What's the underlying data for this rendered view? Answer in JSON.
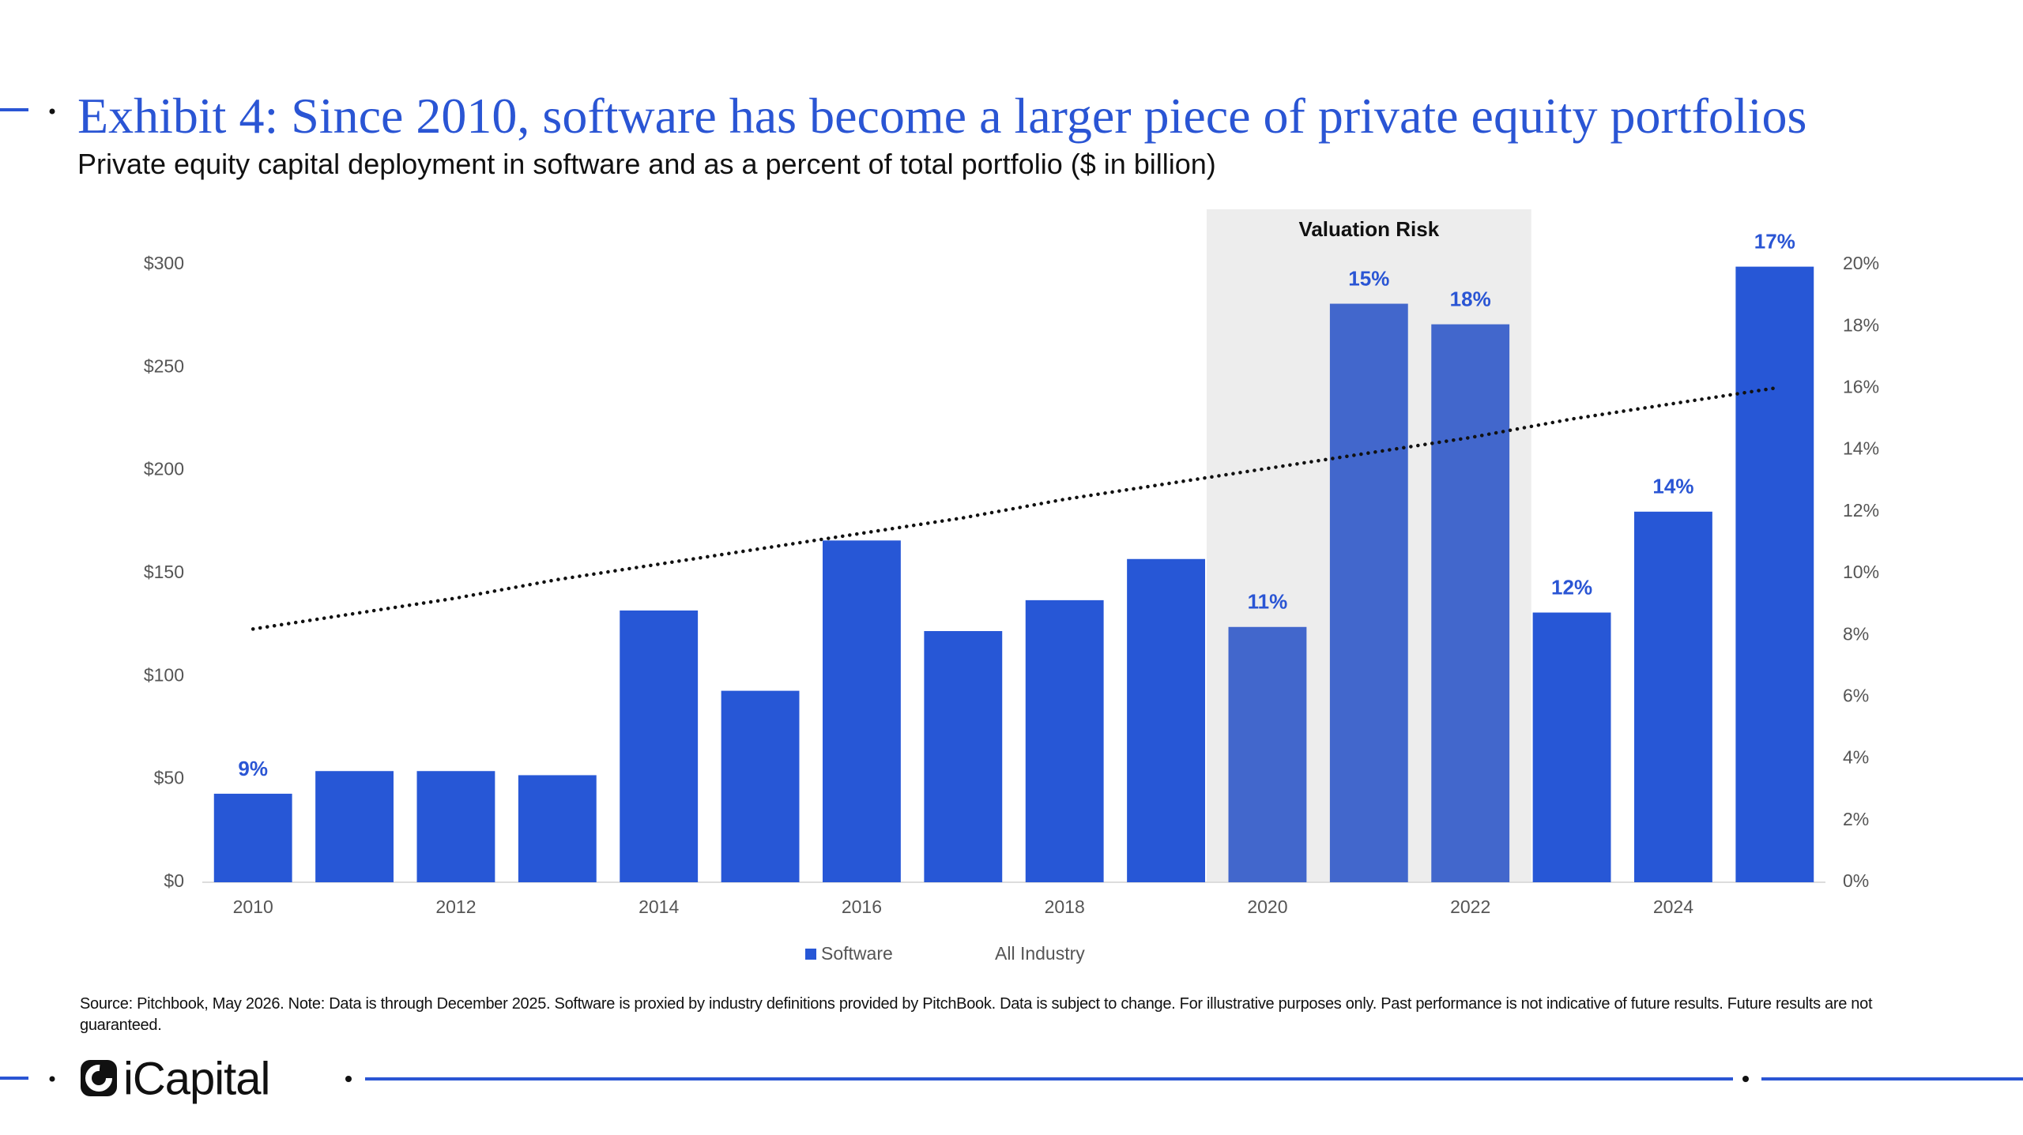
{
  "chart_data": {
    "type": "bar",
    "title": "Exhibit 4: Since 2010, software has become a larger piece of private equity portfolios",
    "subtitle": "Private equity capital deployment in software and as a percent of total portfolio ($ in billion)",
    "categories": [
      "2010",
      null,
      "2012",
      null,
      "2014",
      null,
      "2016",
      null,
      "2018",
      null,
      "2020",
      null,
      "2022",
      null,
      "2024",
      null
    ],
    "series": [
      {
        "name": "Software",
        "color": "#2757d6",
        "highlight_color": "#4267cc",
        "values": [
          43,
          54,
          54,
          52,
          132,
          93,
          166,
          122,
          137,
          157,
          124,
          281,
          271,
          131,
          180,
          299
        ]
      },
      {
        "name": "All Industry",
        "color": "#111111",
        "axis": "y2",
        "line": "dotted",
        "values": [
          8.2,
          8.7,
          9.2,
          9.8,
          10.3,
          10.8,
          11.3,
          11.8,
          12.4,
          12.9,
          13.4,
          13.9,
          14.4,
          15.0,
          15.5,
          16.0
        ]
      }
    ],
    "data_labels": {
      "color": "#2a55d4",
      "values": [
        9,
        null,
        null,
        null,
        null,
        null,
        null,
        null,
        null,
        null,
        11,
        15,
        18,
        12,
        14,
        17
      ],
      "value_labels": [
        "9%",
        null,
        null,
        null,
        null,
        null,
        null,
        null,
        null,
        null,
        "11%",
        "15%",
        "18%",
        "12%",
        "14%",
        "17%"
      ]
    },
    "highlight": {
      "label": "Valuation Risk",
      "start": "2020",
      "end": "2022",
      "color": "#ededed"
    },
    "ylim": [
      0,
      300
    ],
    "yticks": [
      {
        "value": 0,
        "label": "$0"
      },
      {
        "value": 50,
        "label": "$50"
      },
      {
        "value": 100,
        "label": "$100"
      },
      {
        "value": 150,
        "label": "$150"
      },
      {
        "value": 200,
        "label": "$200"
      },
      {
        "value": 250,
        "label": "$250"
      },
      {
        "value": 300,
        "label": "$300"
      }
    ],
    "y2lim": [
      0,
      20
    ],
    "y2ticks": [
      {
        "value": 0,
        "label": "0%"
      },
      {
        "value": 2,
        "label": "2%"
      },
      {
        "value": 4,
        "label": "4%"
      },
      {
        "value": 6,
        "label": "6%"
      },
      {
        "value": 8,
        "label": "8%"
      },
      {
        "value": 10,
        "label": "10%"
      },
      {
        "value": 12,
        "label": "12%"
      },
      {
        "value": 14,
        "label": "14%"
      },
      {
        "value": 16,
        "label": "16%"
      },
      {
        "value": 18,
        "label": "18%"
      },
      {
        "value": 20,
        "label": "20%"
      }
    ],
    "grid": false,
    "legend": "bottom",
    "source": "Source: Pitchbook, May 2026. Note: Data is through December 2025. Software is proxied by industry definitions provided by PitchBook. Data is subject to change. For illustrative purposes only. Past performance is not indicative of future results. Future results are not guaranteed.",
    "brand": "iCapital"
  }
}
